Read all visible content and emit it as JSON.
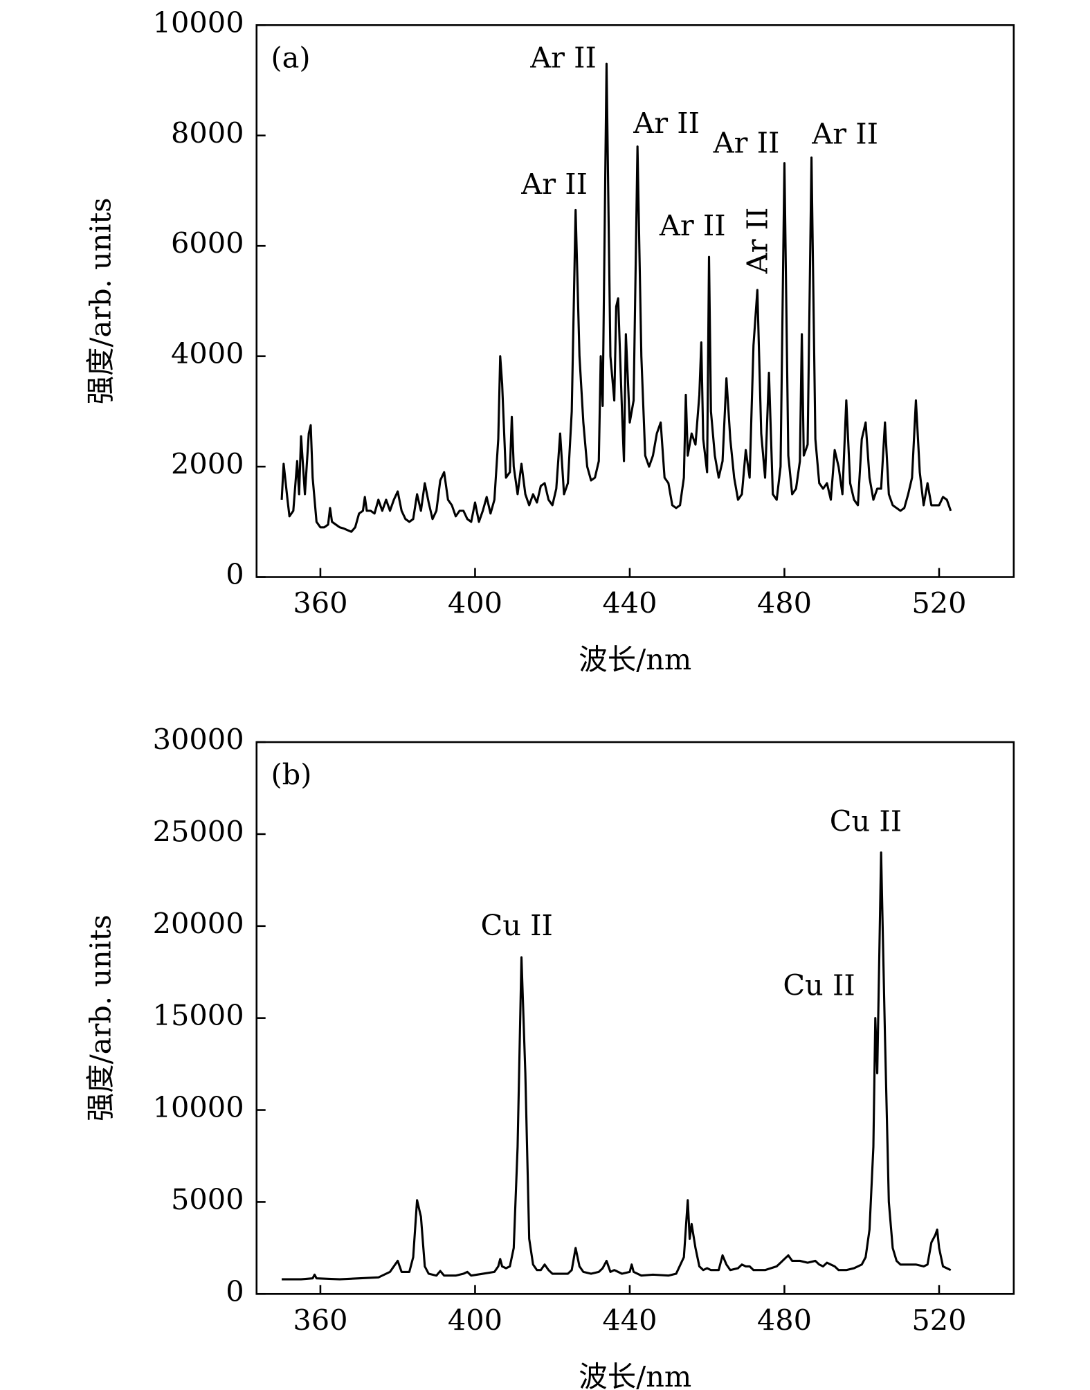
{
  "chart_data": [
    {
      "type": "line",
      "panel_label": "(a)",
      "xlabel": "波长/nm",
      "ylabel": "强度/arb. units",
      "xlim": [
        343.5,
        539.3
      ],
      "ylim": [
        0,
        10000
      ],
      "xticks": [
        360,
        400,
        440,
        480,
        520
      ],
      "yticks": [
        0,
        2000,
        4000,
        6000,
        8000,
        10000
      ],
      "annotations": [
        "Ar II",
        "Ar II",
        "Ar II",
        "Ar II",
        "Ar II",
        "Ar II",
        "Ar II"
      ],
      "x": [
        350,
        350.5,
        351.5,
        352,
        353,
        354,
        354.5,
        355,
        356,
        357,
        357.5,
        358,
        359,
        360,
        361,
        362,
        362.5,
        363,
        364,
        365,
        366,
        367,
        368,
        369,
        370,
        371,
        371.5,
        372,
        373,
        374,
        375,
        376,
        377,
        378,
        379,
        380,
        381,
        382,
        383,
        384,
        385,
        386,
        387,
        388,
        389,
        390,
        391,
        392,
        393,
        394,
        395,
        396,
        397,
        398,
        399,
        400,
        401,
        402,
        403,
        404,
        405,
        406,
        406.5,
        407,
        408,
        409,
        409.5,
        410,
        411,
        412,
        413,
        414,
        415,
        416,
        417,
        418,
        419,
        420,
        421,
        422,
        423,
        424,
        425,
        426,
        427,
        428,
        429,
        430,
        431,
        432,
        432.5,
        433,
        434,
        435,
        436,
        436.5,
        437,
        438,
        438.5,
        439,
        440,
        441,
        442,
        443,
        444,
        445,
        446,
        447,
        448,
        449,
        450,
        451,
        452,
        453,
        454,
        454.5,
        455,
        456,
        457,
        458,
        458.5,
        459,
        460,
        460.5,
        461,
        462,
        463,
        464,
        465,
        466,
        467,
        468,
        469,
        470,
        471,
        472,
        473,
        474,
        475,
        476,
        477,
        478,
        479,
        480,
        481,
        482,
        483,
        484,
        484.5,
        485,
        486,
        487,
        488,
        489,
        490,
        491,
        492,
        493,
        494,
        495,
        496,
        497,
        498,
        499,
        500,
        501,
        502,
        503,
        504,
        505,
        506,
        507,
        508,
        509,
        510,
        511,
        512,
        513,
        514,
        515,
        516,
        517,
        518,
        519,
        520,
        521,
        522,
        523
      ],
      "series": [
        {
          "color": "#000000",
          "values": [
            1400,
            2050,
            1400,
            1100,
            1200,
            2100,
            1500,
            2550,
            1500,
            2600,
            2750,
            1800,
            1000,
            900,
            900,
            950,
            1250,
            1000,
            950,
            900,
            880,
            850,
            820,
            900,
            1150,
            1200,
            1450,
            1200,
            1200,
            1150,
            1400,
            1200,
            1400,
            1200,
            1400,
            1550,
            1200,
            1050,
            1000,
            1050,
            1500,
            1200,
            1700,
            1350,
            1050,
            1200,
            1750,
            1900,
            1400,
            1300,
            1100,
            1200,
            1200,
            1050,
            1000,
            1350,
            1000,
            1200,
            1450,
            1150,
            1400,
            2500,
            4000,
            3500,
            1800,
            1900,
            2900,
            2000,
            1500,
            2050,
            1500,
            1300,
            1500,
            1350,
            1650,
            1700,
            1400,
            1300,
            1600,
            2600,
            1500,
            1700,
            3000,
            6650,
            4000,
            2800,
            2000,
            1750,
            1800,
            2100,
            4000,
            3100,
            9300,
            4000,
            3200,
            4900,
            5050,
            3000,
            2100,
            4400,
            2800,
            3200,
            7800,
            4000,
            2200,
            2000,
            2200,
            2600,
            2800,
            1800,
            1700,
            1300,
            1250,
            1300,
            1800,
            3300,
            2200,
            2600,
            2400,
            3300,
            4250,
            2500,
            1900,
            5800,
            3000,
            2200,
            1800,
            2100,
            3600,
            2500,
            1800,
            1400,
            1500,
            2300,
            1800,
            4200,
            5200,
            2600,
            1800,
            3700,
            1500,
            1400,
            2000,
            7500,
            2200,
            1500,
            1600,
            2100,
            4400,
            2200,
            2400,
            7600,
            2500,
            1700,
            1600,
            1700,
            1400,
            2300,
            2000,
            1500,
            3200,
            1700,
            1400,
            1300,
            2500,
            2800,
            1800,
            1400,
            1600,
            1600,
            2800,
            1500,
            1300,
            1250,
            1200,
            1250,
            1500,
            1800,
            3200,
            1900,
            1300,
            1700,
            1300,
            1300,
            1300,
            1450,
            1400,
            1200
          ]
        }
      ]
    },
    {
      "type": "line",
      "panel_label": "(b)",
      "xlabel": "波长/nm",
      "ylabel": "强度/arb. units",
      "xlim": [
        343.5,
        539.3
      ],
      "ylim": [
        0,
        30000
      ],
      "xticks": [
        360,
        400,
        440,
        480,
        520
      ],
      "yticks": [
        0,
        5000,
        10000,
        15000,
        20000,
        25000,
        30000
      ],
      "annotations": [
        "Cu II",
        "Cu II",
        "Cu II"
      ],
      "x": [
        350,
        355,
        358,
        358.5,
        359,
        365,
        370,
        375,
        378,
        379,
        380,
        381,
        383,
        384,
        385,
        386,
        387,
        388,
        390,
        391,
        392,
        395,
        397,
        398,
        399,
        402,
        405,
        406,
        406.5,
        407,
        408,
        409,
        410,
        411,
        412,
        413,
        414,
        415,
        416,
        417,
        418,
        419,
        420,
        424,
        425,
        426,
        427,
        428,
        430,
        432,
        433,
        434,
        435,
        436,
        438,
        440,
        440.5,
        441,
        443,
        446,
        450,
        452,
        454,
        455,
        455.5,
        456,
        457,
        458,
        459,
        460,
        461,
        463,
        464,
        465,
        466,
        468,
        469,
        470,
        471,
        472,
        475,
        478,
        479,
        480,
        481,
        482,
        484,
        486,
        488,
        489,
        490,
        491,
        493,
        494,
        496,
        498,
        500,
        501,
        502,
        503,
        503.5,
        504,
        505,
        506,
        507,
        508,
        509,
        510,
        512,
        514,
        516,
        517,
        518,
        519,
        519.5,
        520,
        521,
        523
      ],
      "series": [
        {
          "color": "#000000",
          "values": [
            800,
            800,
            850,
            1050,
            850,
            800,
            850,
            900,
            1200,
            1500,
            1800,
            1200,
            1200,
            2000,
            5100,
            4200,
            1500,
            1100,
            1000,
            1250,
            1000,
            1000,
            1100,
            1200,
            1000,
            1100,
            1200,
            1500,
            1900,
            1500,
            1400,
            1500,
            2500,
            8000,
            18300,
            12000,
            3000,
            1600,
            1300,
            1300,
            1600,
            1300,
            1100,
            1100,
            1300,
            2500,
            1500,
            1200,
            1100,
            1200,
            1400,
            1800,
            1200,
            1300,
            1100,
            1200,
            1600,
            1200,
            1000,
            1050,
            1000,
            1100,
            2000,
            5100,
            3000,
            3800,
            2500,
            1500,
            1300,
            1400,
            1300,
            1300,
            2100,
            1600,
            1300,
            1400,
            1600,
            1500,
            1500,
            1300,
            1300,
            1500,
            1700,
            1900,
            2100,
            1800,
            1800,
            1700,
            1800,
            1600,
            1500,
            1700,
            1500,
            1300,
            1300,
            1400,
            1600,
            2000,
            3500,
            8000,
            15000,
            12000,
            24000,
            14000,
            5000,
            2500,
            1800,
            1600,
            1600,
            1600,
            1500,
            1600,
            2800,
            3200,
            3500,
            2500,
            1500,
            1300
          ]
        }
      ]
    }
  ]
}
